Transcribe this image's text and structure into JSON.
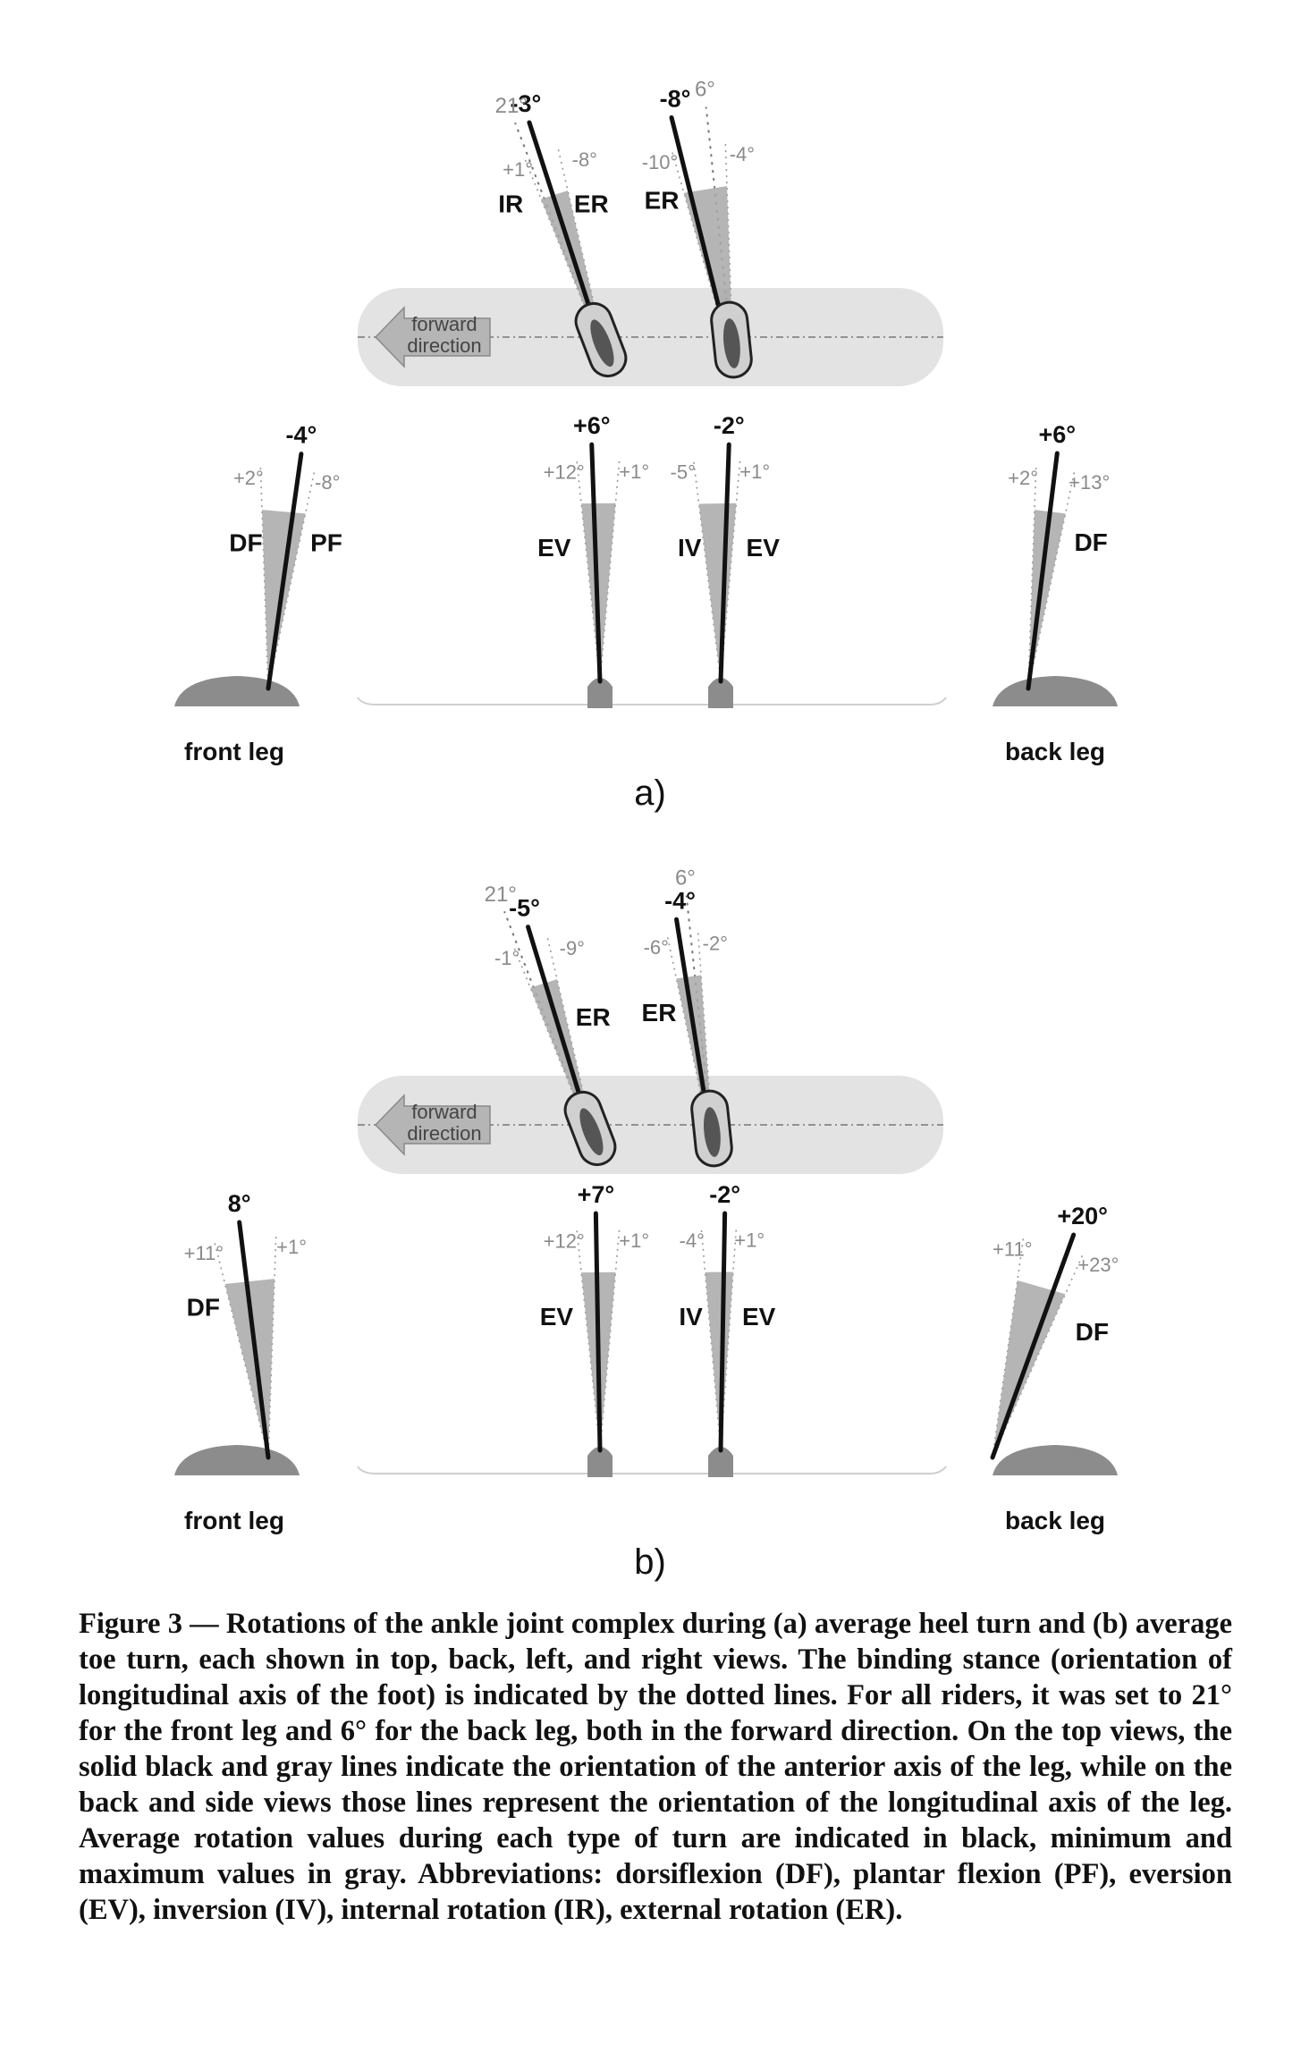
{
  "panel_a": {
    "label": "a)",
    "forward_text": [
      "forward",
      "direction"
    ],
    "top_front": {
      "stance": "21°",
      "avg": "-3°",
      "min": "+1°",
      "max": "-8°",
      "left_label": "IR",
      "right_label": "ER"
    },
    "top_back": {
      "stance": "6°",
      "avg": "-8°",
      "min": "-10°",
      "max": "-4°",
      "left_label": "ER"
    },
    "front_leg": {
      "avg": "-4°",
      "min": "+2°",
      "max": "-8°",
      "left_label": "DF",
      "right_label": "PF",
      "caption": "front leg"
    },
    "back_front": {
      "avg": "+6°",
      "min": "+12°",
      "max": "+1°",
      "left_label": "EV"
    },
    "back_back": {
      "avg": "-2°",
      "min": "-5°",
      "max": "+1°",
      "left_label": "IV",
      "right_label": "EV"
    },
    "back_leg": {
      "avg": "+6°",
      "min": "+2°",
      "max": "+13°",
      "right_label": "DF",
      "caption": "back leg"
    }
  },
  "panel_b": {
    "label": "b)",
    "forward_text": [
      "forward",
      "direction"
    ],
    "top_front": {
      "stance": "21°",
      "avg": "-5°",
      "min": "-1°",
      "max": "-9°",
      "right_label": "ER"
    },
    "top_back": {
      "stance": "6°",
      "avg": "-4°",
      "min": "-6°",
      "max": "-2°",
      "left_label": "ER"
    },
    "front_leg": {
      "avg": "8°",
      "min": "+11°",
      "max": "+1°",
      "left_label": "DF",
      "caption": "front leg"
    },
    "back_front": {
      "avg": "+7°",
      "min": "+12°",
      "max": "+1°",
      "left_label": "EV"
    },
    "back_back": {
      "avg": "-2°",
      "min": "-4°",
      "max": "+1°",
      "left_label": "IV",
      "right_label": "EV"
    },
    "back_leg": {
      "avg": "+20°",
      "min": "+11°",
      "max": "+23°",
      "right_label": "DF",
      "caption": "back leg"
    }
  },
  "caption": "Figure 3 — Rotations of the ankle joint complex during (a) average heel turn and (b) average toe turn, each shown in top, back, left, and right views. The binding stance (orientation of longitudinal axis of the foot) is indicated by the dotted lines. For all riders, it was set to 21° for the front leg and 6° for the back leg, both in the forward direction. On the top views, the solid black and gray lines indicate the orientation of the anterior axis of the leg, while on the back and side views those lines represent the orientation of the longitudinal axis of the leg. Average rotation values during each type of turn are indicated in black, minimum and maximum values in gray. Abbreviations: dorsiflexion (DF), plantar flexion (PF), eversion (EV), inversion (IV), internal rotation (IR), external rotation (ER).",
  "colors": {
    "board": "#e3e3e3",
    "wedge": "#a8a8a8",
    "gray_text": "#8a8a8a",
    "black": "#111111",
    "foot": "#8c8c8c"
  }
}
